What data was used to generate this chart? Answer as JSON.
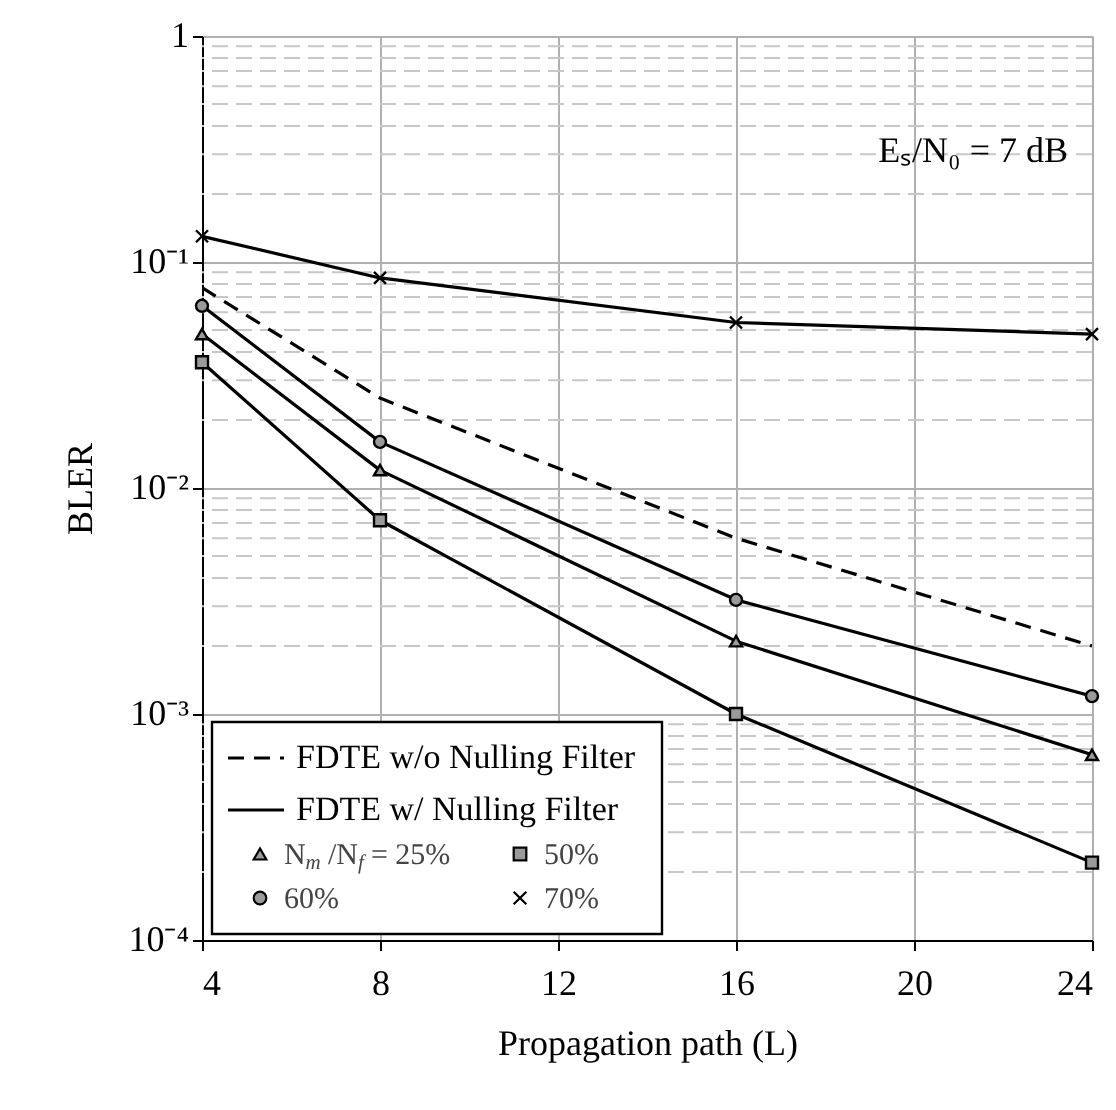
{
  "chart_data": {
    "type": "line",
    "xlabel": "Propagation path (L)",
    "ylabel": "BLER",
    "x": [
      4,
      8,
      16,
      24
    ],
    "xlim": [
      4,
      24
    ],
    "xticks": [
      4,
      8,
      12,
      16,
      20,
      24
    ],
    "ylim": [
      0.0001,
      1
    ],
    "yticks": [
      {
        "value": 0.0001,
        "label": "10⁻⁴"
      },
      {
        "value": 0.001,
        "label": "10⁻³"
      },
      {
        "value": 0.01,
        "label": "10⁻²"
      },
      {
        "value": 0.1,
        "label": "10⁻¹"
      },
      1
    ],
    "log": true,
    "grid": true,
    "legend": "bottom left",
    "annotations": [
      "FDTE w/ Nulling Filter",
      "Eₛ/N₀ = 7 dB"
    ],
    "series": [
      {
        "name": "FDTE w/o Nulling Filter",
        "color": "#000000",
        "line_style": "dashed",
        "marker": "none",
        "values": [
          0.077,
          0.025,
          0.006,
          0.002
        ]
      },
      {
        "name": "N$_{m}$/N$_{f}$ = 25%",
        "color": "#000000",
        "line_style": "solid",
        "marker": "triangle",
        "values": [
          0.048,
          0.012,
          0.0021,
          0.00066
        ]
      },
      {
        "name": "50%",
        "color": "#000000",
        "line_style": "solid",
        "marker": "square",
        "values": [
          0.036,
          0.0072,
          0.001,
          0.00022
        ]
      },
      {
        "name": "60%",
        "color": "#000000",
        "line_style": "solid",
        "marker": "circle",
        "values": [
          0.064,
          0.016,
          0.0032,
          0.0012
        ]
      },
      {
        "name": "70%",
        "color": "#000000",
        "line_style": "solid",
        "marker": "cross",
        "values": [
          0.13,
          0.085,
          0.054,
          0.048
        ]
      }
    ]
  }
}
